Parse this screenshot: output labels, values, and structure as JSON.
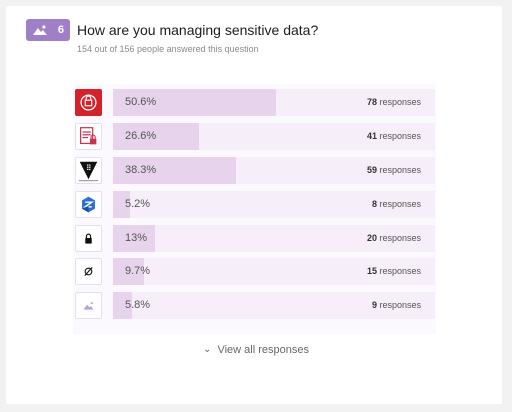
{
  "question": {
    "number": "6",
    "title": "How are you managing sensitive data?",
    "subtitle": "154 out of 156 people answered this question"
  },
  "view_all_label": "View all responses",
  "chart_data": {
    "type": "bar",
    "orientation": "horizontal",
    "title": "How are you managing sensitive data?",
    "categories": [
      "",
      "",
      "",
      "",
      "",
      "",
      ""
    ],
    "values": [
      50.6,
      26.6,
      38.3,
      5.2,
      13,
      9.7,
      5.8
    ],
    "value_labels": [
      "50.6%",
      "26.6%",
      "38.3%",
      "5.2%",
      "13%",
      "9.7%",
      "5.8%"
    ],
    "responses": [
      78,
      41,
      59,
      8,
      20,
      15,
      9
    ],
    "response_suffix": "responses",
    "xlim": [
      0,
      100
    ],
    "grid": false
  },
  "icons": [
    "red-shield-logo-icon",
    "document-lock-icon",
    "vault-triangle-logo-icon",
    "blue-hexagon-logo-icon",
    "padlock-icon",
    "empty-set-icon",
    "image-placeholder-icon"
  ],
  "colors": {
    "accent": "#9f7fc6",
    "bar_fill": "#e7d3ec",
    "bar_track": "#f6eff9"
  }
}
